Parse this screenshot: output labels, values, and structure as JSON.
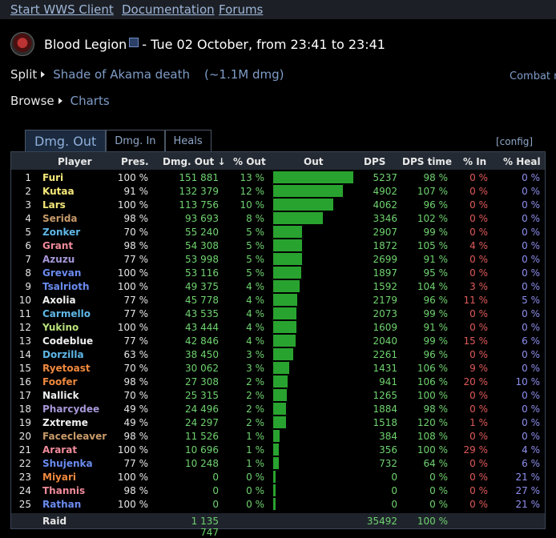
{
  "nav": {
    "links": [
      "Start WWS Client",
      "Documentation",
      "Forums"
    ]
  },
  "header": {
    "guild_name": "Blood Legion",
    "title": "- Tue 02 October, from 23:41 to 23:41"
  },
  "breadcrumb": {
    "split_label": "Split",
    "encounter_label": "Shade of Akama death",
    "damage_summary": "(~1.1M dmg)",
    "combat_label": "Combat r",
    "browse_label": "Browse",
    "charts_label": "Charts"
  },
  "tabs": {
    "dmg_out": "Dmg. Out",
    "dmg_in": "Dmg. In",
    "heals": "Heals",
    "config": "[config]"
  },
  "table": {
    "headers": {
      "player": "Player",
      "pres": "Pres.",
      "dmg_out": "Dmg. Out ↓",
      "pct_out": "% Out",
      "out": "Out",
      "dps": "DPS",
      "dps_time": "DPS time",
      "pct_in": "% In",
      "pct_heal": "% Heal"
    },
    "rows": [
      {
        "rank": "1",
        "name": "Furi",
        "color": "#f5e87a",
        "pres": "100 %",
        "dmg": "151 881",
        "pct": "13 %",
        "bar": 1.0,
        "dps": "5237",
        "dpst": "98 %",
        "in": "0 %",
        "heal": "0 %"
      },
      {
        "rank": "2",
        "name": "Kutaa",
        "color": "#f5e87a",
        "pres": "91 %",
        "dmg": "132 379",
        "pct": "12 %",
        "bar": 0.872,
        "dps": "4902",
        "dpst": "107 %",
        "in": "0 %",
        "heal": "0 %"
      },
      {
        "rank": "3",
        "name": "Lars",
        "color": "#f5e87a",
        "pres": "100 %",
        "dmg": "113 756",
        "pct": "10 %",
        "bar": 0.749,
        "dps": "4062",
        "dpst": "96 %",
        "in": "0 %",
        "heal": "0 %"
      },
      {
        "rank": "4",
        "name": "Serida",
        "color": "#c89a6a",
        "pres": "98 %",
        "dmg": "93 693",
        "pct": "8 %",
        "bar": 0.617,
        "dps": "3346",
        "dpst": "102 %",
        "in": "0 %",
        "heal": "0 %"
      },
      {
        "rank": "5",
        "name": "Zonker",
        "color": "#5fb7e8",
        "pres": "70 %",
        "dmg": "55 240",
        "pct": "5 %",
        "bar": 0.364,
        "dps": "2907",
        "dpst": "99 %",
        "in": "0 %",
        "heal": "0 %"
      },
      {
        "rank": "6",
        "name": "Grant",
        "color": "#f08a9a",
        "pres": "98 %",
        "dmg": "54 308",
        "pct": "5 %",
        "bar": 0.358,
        "dps": "1872",
        "dpst": "105 %",
        "in": "4 %",
        "heal": "0 %"
      },
      {
        "rank": "7",
        "name": "Azuzu",
        "color": "#a797d8",
        "pres": "77 %",
        "dmg": "53 998",
        "pct": "5 %",
        "bar": 0.356,
        "dps": "2699",
        "dpst": "91 %",
        "in": "0 %",
        "heal": "0 %"
      },
      {
        "rank": "8",
        "name": "Grevan",
        "color": "#6a8bf0",
        "pres": "100 %",
        "dmg": "53 116",
        "pct": "5 %",
        "bar": 0.35,
        "dps": "1897",
        "dpst": "95 %",
        "in": "0 %",
        "heal": "0 %"
      },
      {
        "rank": "9",
        "name": "Tsalrioth",
        "color": "#6a8bf0",
        "pres": "100 %",
        "dmg": "49 375",
        "pct": "4 %",
        "bar": 0.325,
        "dps": "1592",
        "dpst": "104 %",
        "in": "3 %",
        "heal": "0 %"
      },
      {
        "rank": "10",
        "name": "Axolia",
        "color": "#f0f0f0",
        "pres": "77 %",
        "dmg": "45 778",
        "pct": "4 %",
        "bar": 0.301,
        "dps": "2179",
        "dpst": "96 %",
        "in": "11 %",
        "heal": "5 %"
      },
      {
        "rank": "11",
        "name": "Carmello",
        "color": "#5fb7e8",
        "pres": "77 %",
        "dmg": "43 535",
        "pct": "4 %",
        "bar": 0.287,
        "dps": "2073",
        "dpst": "99 %",
        "in": "0 %",
        "heal": "0 %"
      },
      {
        "rank": "12",
        "name": "Yukino",
        "color": "#b6e07a",
        "pres": "100 %",
        "dmg": "43 444",
        "pct": "4 %",
        "bar": 0.286,
        "dps": "1609",
        "dpst": "91 %",
        "in": "0 %",
        "heal": "0 %"
      },
      {
        "rank": "13",
        "name": "Codeblue",
        "color": "#f0f0f0",
        "pres": "77 %",
        "dmg": "42 846",
        "pct": "4 %",
        "bar": 0.282,
        "dps": "2040",
        "dpst": "99 %",
        "in": "15 %",
        "heal": "6 %"
      },
      {
        "rank": "14",
        "name": "Dorzilla",
        "color": "#5fb7e8",
        "pres": "63 %",
        "dmg": "38 450",
        "pct": "3 %",
        "bar": 0.253,
        "dps": "2261",
        "dpst": "96 %",
        "in": "0 %",
        "heal": "0 %"
      },
      {
        "rank": "15",
        "name": "Ryetoast",
        "color": "#f0883e",
        "pres": "70 %",
        "dmg": "30 062",
        "pct": "3 %",
        "bar": 0.198,
        "dps": "1431",
        "dpst": "106 %",
        "in": "9 %",
        "heal": "0 %"
      },
      {
        "rank": "16",
        "name": "Foofer",
        "color": "#f0883e",
        "pres": "98 %",
        "dmg": "27 308",
        "pct": "2 %",
        "bar": 0.18,
        "dps": "941",
        "dpst": "106 %",
        "in": "20 %",
        "heal": "10 %"
      },
      {
        "rank": "17",
        "name": "Nallick",
        "color": "#f0f0f0",
        "pres": "70 %",
        "dmg": "25 315",
        "pct": "2 %",
        "bar": 0.167,
        "dps": "1265",
        "dpst": "100 %",
        "in": "0 %",
        "heal": "0 %"
      },
      {
        "rank": "18",
        "name": "Pharcydee",
        "color": "#a797d8",
        "pres": "49 %",
        "dmg": "24 496",
        "pct": "2 %",
        "bar": 0.161,
        "dps": "1884",
        "dpst": "98 %",
        "in": "0 %",
        "heal": "0 %"
      },
      {
        "rank": "19",
        "name": "Zxtreme",
        "color": "#f0f0f0",
        "pres": "49 %",
        "dmg": "24 297",
        "pct": "2 %",
        "bar": 0.16,
        "dps": "1518",
        "dpst": "120 %",
        "in": "1 %",
        "heal": "0 %"
      },
      {
        "rank": "20",
        "name": "Facecleaver",
        "color": "#c89a6a",
        "pres": "98 %",
        "dmg": "11 526",
        "pct": "1 %",
        "bar": 0.076,
        "dps": "384",
        "dpst": "108 %",
        "in": "0 %",
        "heal": "0 %"
      },
      {
        "rank": "21",
        "name": "Ararat",
        "color": "#f08a9a",
        "pres": "100 %",
        "dmg": "10 696",
        "pct": "1 %",
        "bar": 0.07,
        "dps": "356",
        "dpst": "100 %",
        "in": "29 %",
        "heal": "4 %"
      },
      {
        "rank": "22",
        "name": "Shujenka",
        "color": "#6a8bf0",
        "pres": "77 %",
        "dmg": "10 248",
        "pct": "1 %",
        "bar": 0.067,
        "dps": "732",
        "dpst": "64 %",
        "in": "0 %",
        "heal": "6 %"
      },
      {
        "rank": "23",
        "name": "Miyari",
        "color": "#f0883e",
        "pres": "100 %",
        "dmg": "0",
        "pct": "0 %",
        "bar": 0.03,
        "dps": "0",
        "dpst": "0 %",
        "in": "0 %",
        "heal": "21 %"
      },
      {
        "rank": "24",
        "name": "Thannis",
        "color": "#f08a9a",
        "pres": "98 %",
        "dmg": "0",
        "pct": "0 %",
        "bar": 0.03,
        "dps": "0",
        "dpst": "0 %",
        "in": "0 %",
        "heal": "27 %"
      },
      {
        "rank": "25",
        "name": "Rathan",
        "color": "#6a8bf0",
        "pres": "100 %",
        "dmg": "0",
        "pct": "0 %",
        "bar": 0.03,
        "dps": "0",
        "dpst": "0 %",
        "in": "0 %",
        "heal": "21 %"
      }
    ],
    "raid": {
      "label": "Raid",
      "dmg": "1 135 747",
      "dps": "35492",
      "dpst": "100 %"
    }
  }
}
